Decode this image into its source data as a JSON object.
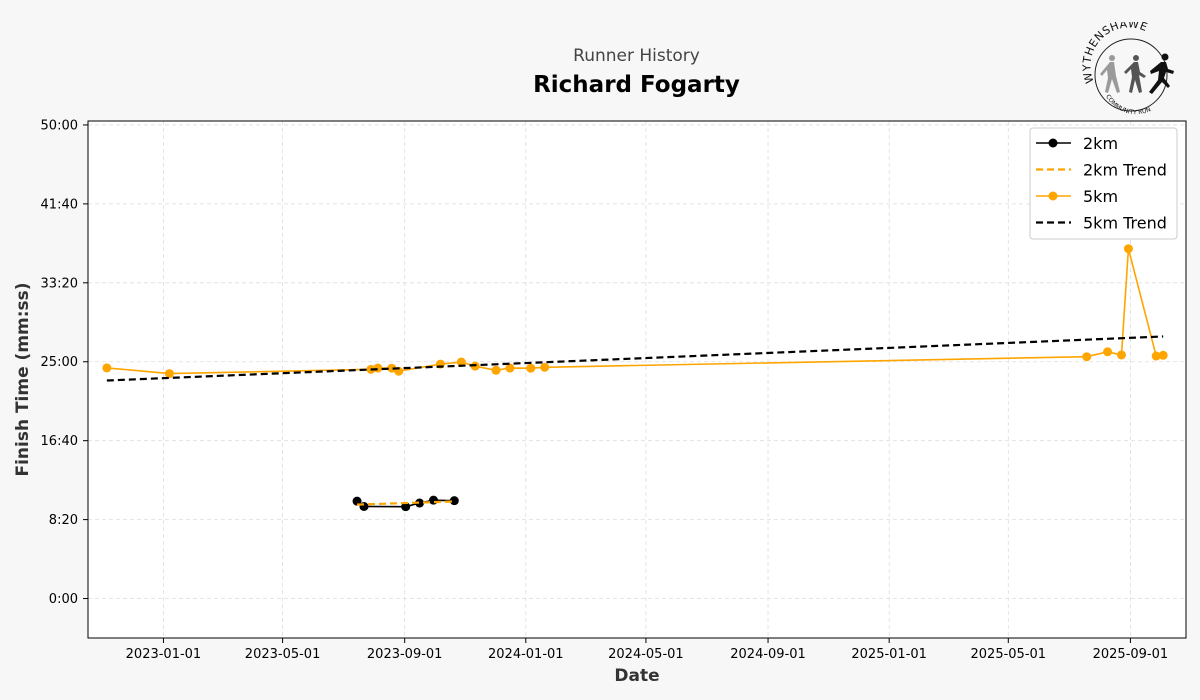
{
  "header": {
    "subtitle": "Runner History",
    "title": "Richard Fogarty"
  },
  "logo": {
    "text": "WYTHENSHAWE",
    "subtext": "COMMUNITY RUN"
  },
  "chart_data": {
    "type": "line",
    "title": "Richard Fogarty",
    "subtitle": "Runner History",
    "xlabel": "Date",
    "ylabel": "Finish Time (mm:ss)",
    "xlim": [
      "2022-10-17",
      "2025-10-27"
    ],
    "ylim": [
      "-4:10",
      "50:25"
    ],
    "x_ticks": [
      "2023-01-01",
      "2023-05-01",
      "2023-09-01",
      "2024-01-01",
      "2024-05-01",
      "2024-09-01",
      "2025-01-01",
      "2025-05-01",
      "2025-09-01"
    ],
    "y_ticks": [
      "0:00",
      "8:20",
      "16:40",
      "25:00",
      "33:20",
      "41:40",
      "50:00"
    ],
    "grid": true,
    "legend_position": "top-right",
    "series": [
      {
        "name": "2km",
        "color": "#000000",
        "style": "solid",
        "marker": "circle",
        "points": [
          {
            "date": "2023-07-15",
            "time": "10:17"
          },
          {
            "date": "2023-07-22",
            "time": "9:43"
          },
          {
            "date": "2023-09-02",
            "time": "9:42"
          },
          {
            "date": "2023-09-16",
            "time": "10:05"
          },
          {
            "date": "2023-09-30",
            "time": "10:23"
          },
          {
            "date": "2023-10-21",
            "time": "10:20"
          }
        ]
      },
      {
        "name": "2km Trend",
        "color": "#FFA500",
        "style": "dashed",
        "marker": "none",
        "points": [
          {
            "date": "2023-07-15",
            "time": "9:55"
          },
          {
            "date": "2023-10-21",
            "time": "10:15"
          }
        ]
      },
      {
        "name": "5km",
        "color": "#FFA500",
        "style": "solid",
        "marker": "circle",
        "points": [
          {
            "date": "2022-11-05",
            "time": "24:21"
          },
          {
            "date": "2023-01-07",
            "time": "23:45"
          },
          {
            "date": "2023-07-29",
            "time": "24:12"
          },
          {
            "date": "2023-08-05",
            "time": "24:20"
          },
          {
            "date": "2023-08-19",
            "time": "24:19"
          },
          {
            "date": "2023-08-26",
            "time": "24:00"
          },
          {
            "date": "2023-10-07",
            "time": "24:45"
          },
          {
            "date": "2023-10-28",
            "time": "24:58"
          },
          {
            "date": "2023-11-11",
            "time": "24:32"
          },
          {
            "date": "2023-12-02",
            "time": "24:06"
          },
          {
            "date": "2023-12-16",
            "time": "24:20"
          },
          {
            "date": "2024-01-06",
            "time": "24:19"
          },
          {
            "date": "2024-01-20",
            "time": "24:25"
          },
          {
            "date": "2025-07-19",
            "time": "25:32"
          },
          {
            "date": "2025-08-09",
            "time": "26:03"
          },
          {
            "date": "2025-08-23",
            "time": "25:43"
          },
          {
            "date": "2025-08-30",
            "time": "36:56"
          },
          {
            "date": "2025-09-27",
            "time": "25:36"
          },
          {
            "date": "2025-10-04",
            "time": "25:41"
          }
        ]
      },
      {
        "name": "5km Trend",
        "color": "#000000",
        "style": "dashed",
        "marker": "none",
        "points": [
          {
            "date": "2022-11-05",
            "time": "23:01"
          },
          {
            "date": "2025-10-04",
            "time": "27:40"
          }
        ]
      }
    ]
  }
}
